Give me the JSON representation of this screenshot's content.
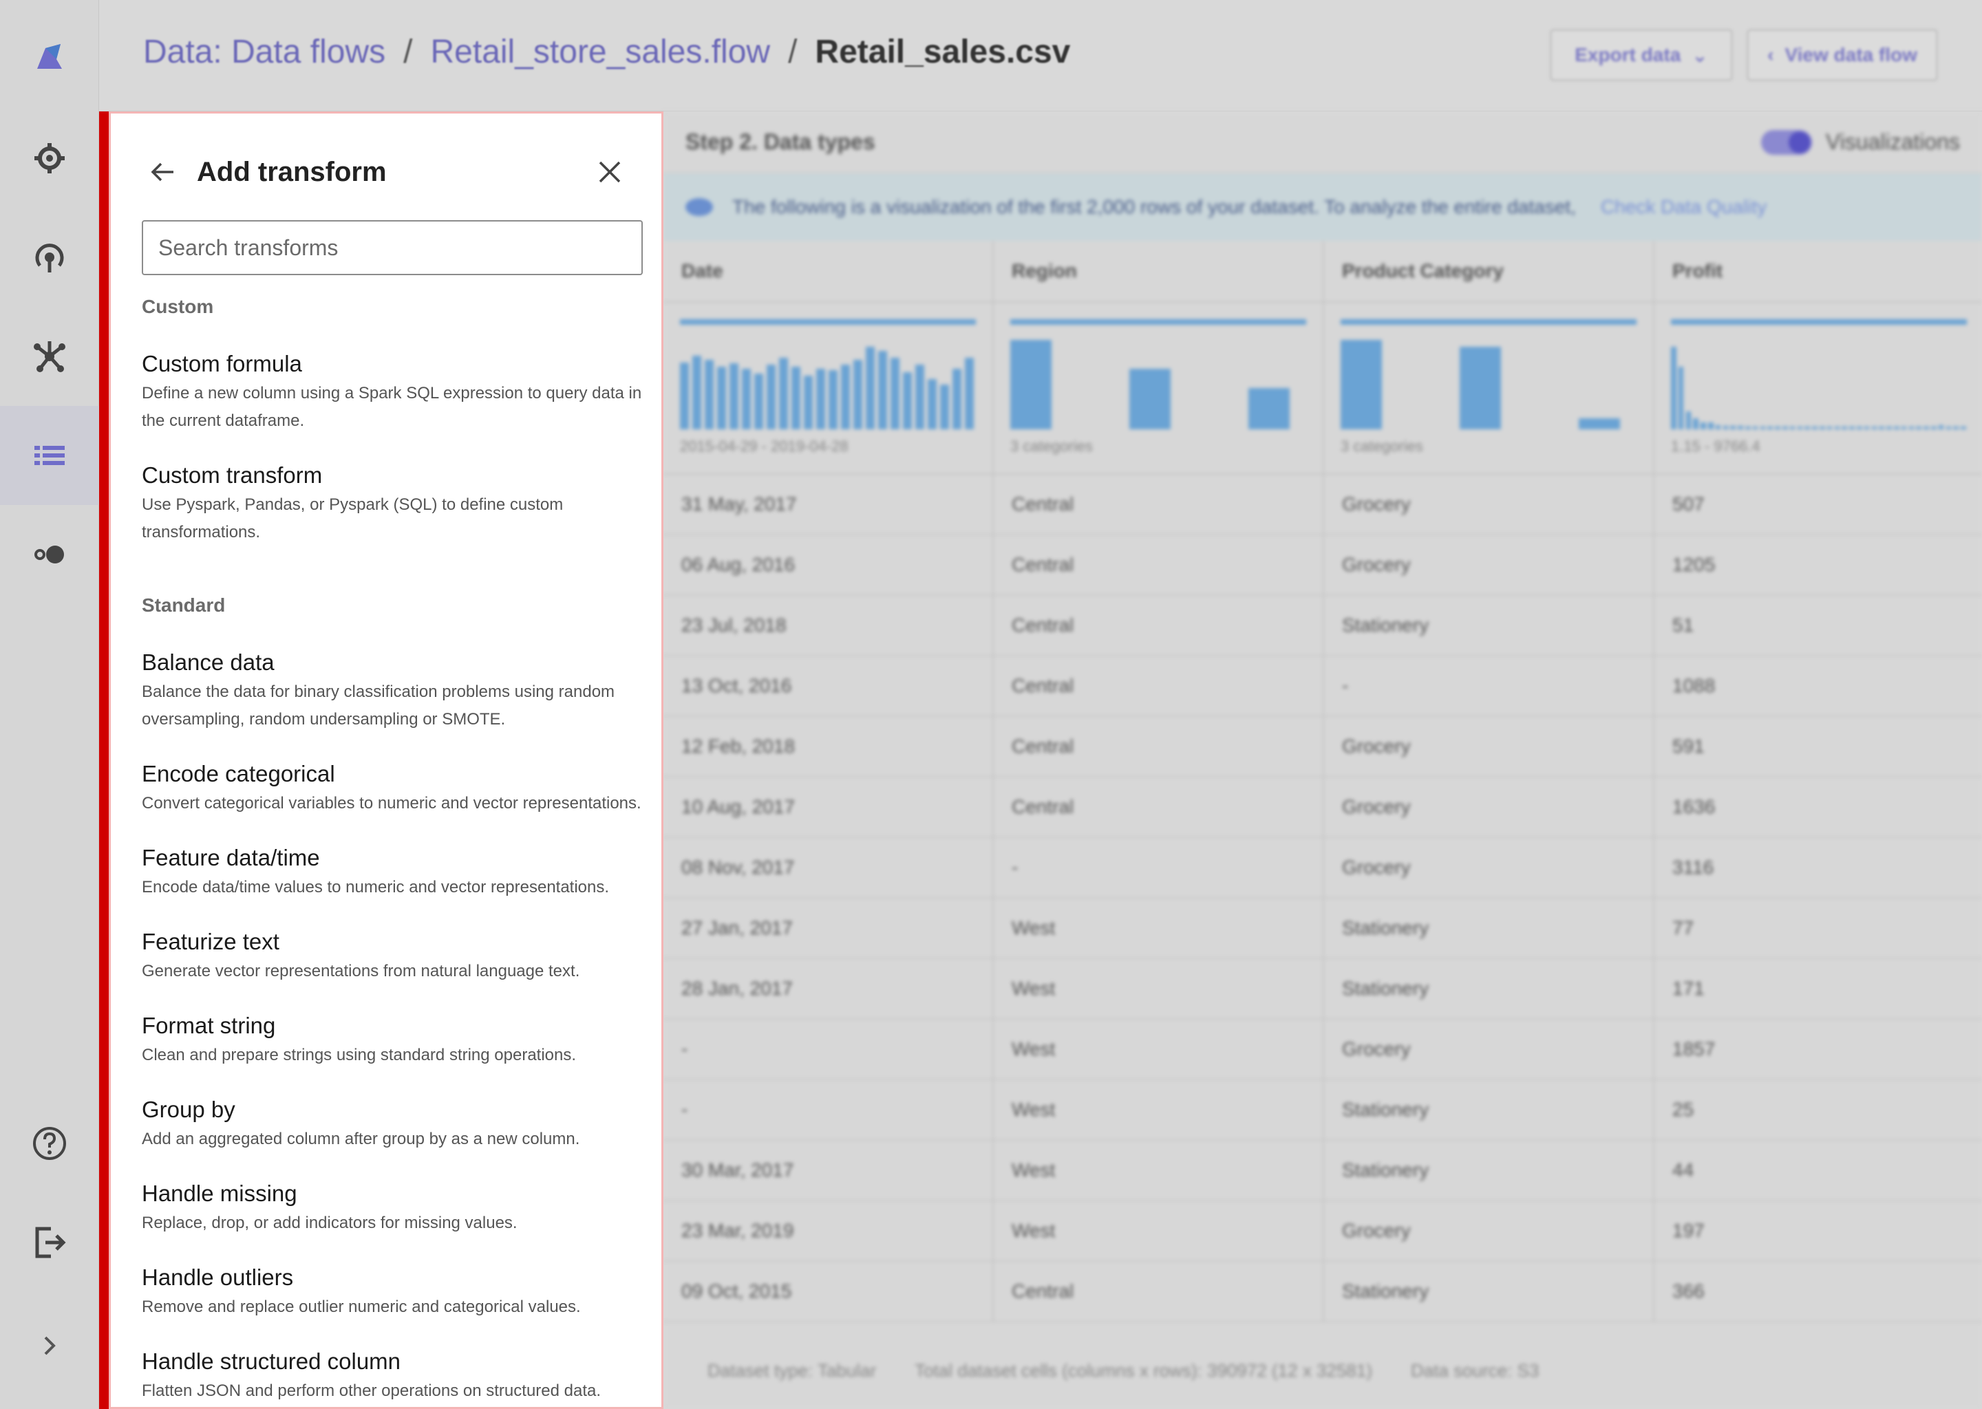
{
  "breadcrumb": {
    "items": [
      "Data: Data flows",
      "Retail_store_sales.flow"
    ],
    "current": "Retail_sales.csv",
    "separator": "/"
  },
  "header": {
    "export_label": "Export data",
    "view_flow_label": "View data flow"
  },
  "panel": {
    "title": "Add transform",
    "search_placeholder": "Search transforms",
    "sections": [
      {
        "label": "Custom",
        "items": [
          {
            "title": "Custom formula",
            "desc": "Define a new column using a Spark SQL expression to query data in the current dataframe."
          },
          {
            "title": "Custom transform",
            "desc": "Use Pyspark, Pandas, or Pyspark (SQL) to define custom transformations."
          }
        ]
      },
      {
        "label": "Standard",
        "items": [
          {
            "title": "Balance data",
            "desc": "Balance the data for binary classification problems using random oversampling, random undersampling or SMOTE."
          },
          {
            "title": "Encode categorical",
            "desc": "Convert categorical variables to numeric and vector representations."
          },
          {
            "title": "Feature data/time",
            "desc": "Encode data/time values to numeric and vector representations."
          },
          {
            "title": "Featurize text",
            "desc": "Generate vector representations from natural language text."
          },
          {
            "title": "Format string",
            "desc": "Clean and prepare strings using standard string operations."
          },
          {
            "title": "Group by",
            "desc": "Add an aggregated column after group by as a new column."
          },
          {
            "title": "Handle missing",
            "desc": "Replace, drop, or add indicators for missing values."
          },
          {
            "title": "Handle outliers",
            "desc": "Remove and replace outlier numeric and categorical values."
          },
          {
            "title": "Handle structured column",
            "desc": "Flatten JSON and perform other operations on structured data."
          }
        ]
      }
    ]
  },
  "main": {
    "step_title": "Step 2. Data types",
    "toggle_label": "Visualizations",
    "info_text": "The following is a visualization of the first 2,000 rows of your dataset. To analyze the entire dataset,",
    "info_link": "Check Data Quality",
    "columns": [
      "Date",
      "Region",
      "Product Category",
      "Profit"
    ],
    "viz_captions": [
      "2015-04-29 - 2019-04-28",
      "3 categories",
      "3 categories",
      "1.15 - 9766.4"
    ],
    "viz_bars": [
      [
        0.75,
        0.82,
        0.78,
        0.7,
        0.74,
        0.68,
        0.62,
        0.72,
        0.8,
        0.7,
        0.6,
        0.68,
        0.66,
        0.72,
        0.78,
        0.92,
        0.88,
        0.8,
        0.64,
        0.72,
        0.56,
        0.5,
        0.68,
        0.8
      ],
      [
        1.0,
        0,
        0.68,
        0,
        0.46
      ],
      [
        1.0,
        0,
        0.92,
        0,
        0.12
      ],
      [
        0.92,
        0.7,
        0.2,
        0.12,
        0.08,
        0.08,
        0.05,
        0.04,
        0.04,
        0.04,
        0.03,
        0.03,
        0.03,
        0.03,
        0.03,
        0.03,
        0.03,
        0.03,
        0.03,
        0.03,
        0.03,
        0.03,
        0.03,
        0.03,
        0.03,
        0.03,
        0.03,
        0.03,
        0.03,
        0.03,
        0.03,
        0.03,
        0.03,
        0.03,
        0.03,
        0.03,
        0.05,
        0.03,
        0.03,
        0.03
      ]
    ],
    "rows": [
      [
        "31 May, 2017",
        "Central",
        "Grocery",
        "507"
      ],
      [
        "06 Aug, 2016",
        "Central",
        "Grocery",
        "1205"
      ],
      [
        "23 Jul, 2018",
        "Central",
        "Stationery",
        "51"
      ],
      [
        "13 Oct, 2016",
        "Central",
        "-",
        "1088"
      ],
      [
        "12 Feb, 2018",
        "Central",
        "Grocery",
        "591"
      ],
      [
        "10 Aug, 2017",
        "Central",
        "Grocery",
        "1636"
      ],
      [
        "08 Nov, 2017",
        "-",
        "Grocery",
        "3116"
      ],
      [
        "27 Jan, 2017",
        "West",
        "Stationery",
        "77"
      ],
      [
        "28 Jan, 2017",
        "West",
        "Stationery",
        "171"
      ],
      [
        "-",
        "West",
        "Grocery",
        "1857"
      ],
      [
        "-",
        "West",
        "Stationery",
        "25"
      ],
      [
        "30 Mar, 2017",
        "West",
        "Stationery",
        "44"
      ],
      [
        "23 Mar, 2019",
        "West",
        "Grocery",
        "197"
      ],
      [
        "09 Oct, 2015",
        "Central",
        "Stationery",
        "366"
      ]
    ],
    "footer": [
      "Dataset type: Tabular",
      "Total dataset cells (columns x rows): 390972 (12 x 32581)",
      "Data source: S3"
    ]
  },
  "colors": {
    "accent": "#d00000",
    "link": "#6a67b7",
    "bar": "#6aa3d4"
  }
}
